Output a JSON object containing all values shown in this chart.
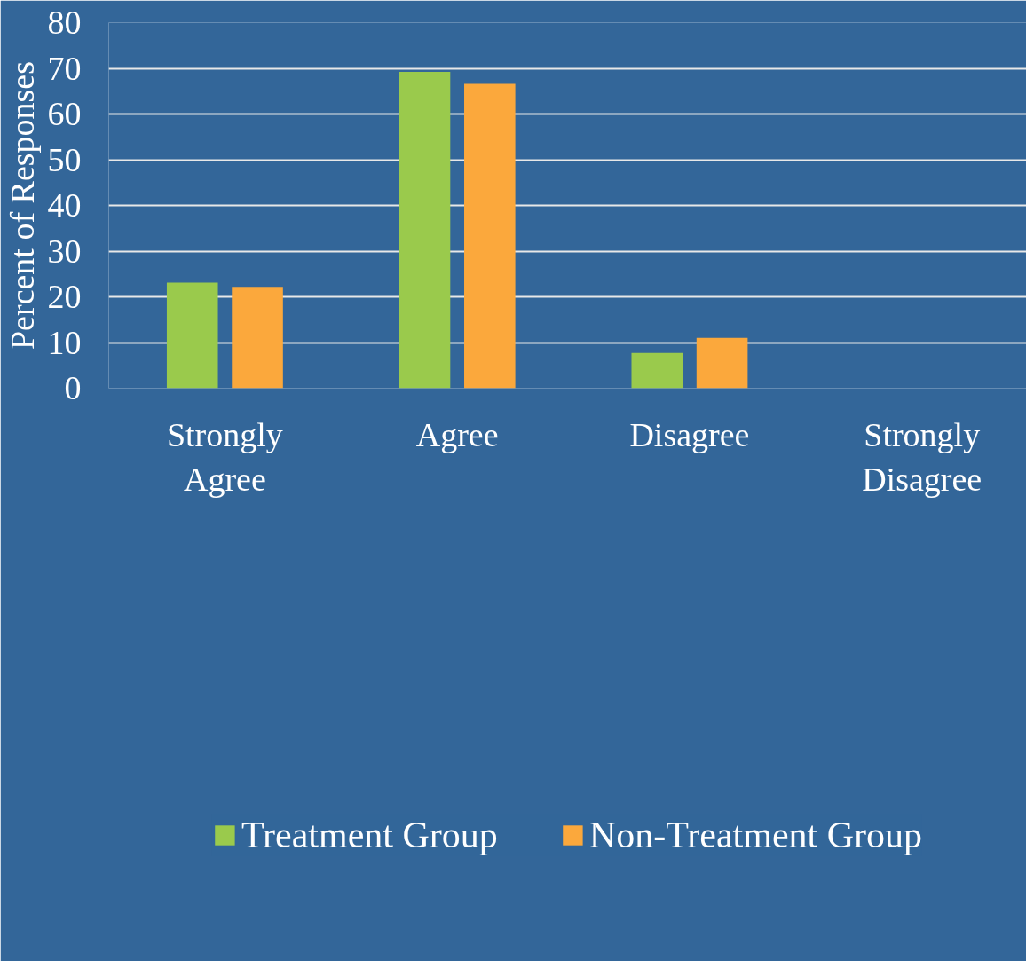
{
  "chart_data": {
    "type": "bar",
    "ylabel": "Percent of Responses",
    "categories": [
      "Strongly Agree",
      "Agree",
      "Disagree",
      "Strongly Disagree"
    ],
    "series": [
      {
        "name": "Treatment Group",
        "color": "#9aca4c",
        "values": [
          23.1,
          69.2,
          7.7,
          0
        ]
      },
      {
        "name": "Non-Treatment Group",
        "color": "#fba83c",
        "values": [
          22.2,
          66.6,
          11.0,
          0
        ]
      }
    ],
    "ylim": [
      0,
      80
    ],
    "yticks": [
      0,
      10,
      20,
      30,
      40,
      50,
      60,
      70,
      80
    ],
    "grid": "y",
    "legend": "bottom"
  }
}
